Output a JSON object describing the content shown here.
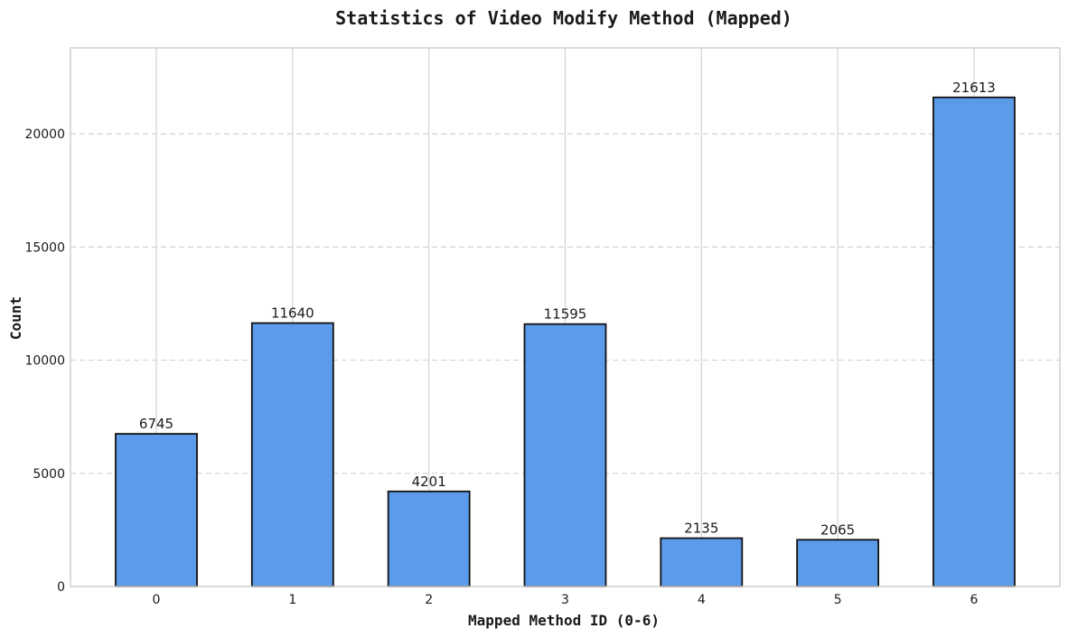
{
  "chart_data": {
    "type": "bar",
    "title": "Statistics of Video Modify Method (Mapped)",
    "xlabel": "Mapped Method ID (0-6)",
    "ylabel": "Count",
    "categories": [
      "0",
      "1",
      "2",
      "3",
      "4",
      "5",
      "6"
    ],
    "values": [
      6745,
      11640,
      4201,
      11595,
      2135,
      2065,
      21613
    ],
    "data_labels": [
      "6745",
      "11640",
      "4201",
      "11595",
      "2135",
      "2065",
      "21613"
    ],
    "ylim": [
      0,
      23800
    ],
    "yticks": [
      0,
      5000,
      10000,
      15000,
      20000
    ],
    "ytick_labels": [
      "0",
      "5000",
      "10000",
      "15000",
      "20000"
    ],
    "grid": {
      "x": "solid",
      "y": "dashed"
    },
    "bar_color": "#5b9bea",
    "edge_color": "#111111",
    "grid_color": "#d3d3d3"
  }
}
